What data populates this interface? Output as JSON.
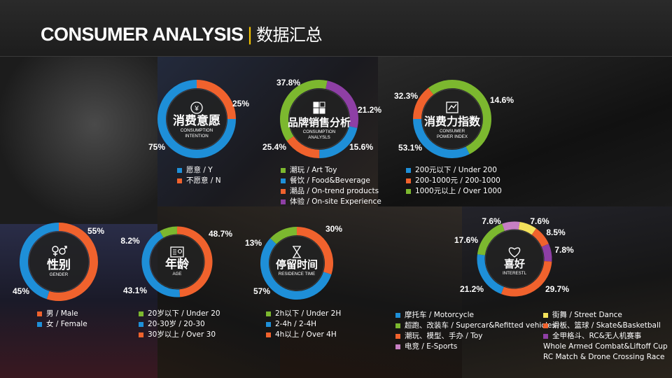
{
  "header": {
    "title_en": "CONSUMER ANALYSIS",
    "separator": "|",
    "title_cn": "数据汇总"
  },
  "colors": {
    "blue": "#1e8fd8",
    "orange": "#f0622d",
    "green": "#7cb82f",
    "purple": "#8e3fa5",
    "yellow": "#f3e25b",
    "pink": "#c77fc3",
    "accent": "#f5c400"
  },
  "charts": [
    {
      "id": "consumption-intention",
      "icon": "yen-icon",
      "title_cn": "消费意愿",
      "title_en": [
        "CONSUMPTION",
        "INTENTION"
      ],
      "labels": [
        "25%",
        "75%"
      ],
      "legend": [
        {
          "color": "#1e8fd8",
          "text": "愿意 / Y"
        },
        {
          "color": "#f0622d",
          "text": "不愿意 / N"
        }
      ]
    },
    {
      "id": "brand-sales",
      "icon": "grid-icon",
      "title_cn": "品牌销售分析",
      "title_en": [
        "CONSUMPTION",
        "ANALYSLS"
      ],
      "labels": [
        "37.8%",
        "21.2%",
        "15.6%",
        "25.4%"
      ],
      "legend": [
        {
          "color": "#7cb82f",
          "text": "潮玩 / Art Toy"
        },
        {
          "color": "#1e8fd8",
          "text": "餐饮 / Food&Beverage"
        },
        {
          "color": "#f0622d",
          "text": "潮品 / On-trend products"
        },
        {
          "color": "#8e3fa5",
          "text": "体验 / On-site Experience"
        }
      ]
    },
    {
      "id": "consumer-power",
      "icon": "wallet-icon",
      "title_cn": "消费力指数",
      "title_en": [
        "CONSUMER",
        "POWER INDEX"
      ],
      "labels": [
        "32.3%",
        "14.6%",
        "53.1%"
      ],
      "legend": [
        {
          "color": "#1e8fd8",
          "text": "200元以下 / Under 200"
        },
        {
          "color": "#f0622d",
          "text": "200-1000元 / 200-1000"
        },
        {
          "color": "#7cb82f",
          "text": "1000元以上 / Over 1000"
        }
      ]
    },
    {
      "id": "gender",
      "icon": "gender-icon",
      "title_cn": "性别",
      "title_en": [
        "GENDER"
      ],
      "labels": [
        "55%",
        "45%"
      ],
      "legend": [
        {
          "color": "#f0622d",
          "text": "男 / Male"
        },
        {
          "color": "#1e8fd8",
          "text": "女 / Female"
        }
      ]
    },
    {
      "id": "age",
      "icon": "id-card-icon",
      "title_cn": "年龄",
      "title_en": [
        "AGE"
      ],
      "labels": [
        "8.2%",
        "48.7%",
        "43.1%"
      ],
      "legend": [
        {
          "color": "#7cb82f",
          "text": "20岁以下 / Under 20"
        },
        {
          "color": "#1e8fd8",
          "text": "20-30岁 / 20-30"
        },
        {
          "color": "#f0622d",
          "text": "30岁以上 / Over 30"
        }
      ]
    },
    {
      "id": "residence-time",
      "icon": "hourglass-icon",
      "title_cn": "停留时间",
      "title_en": [
        "RESIDENCE TIME"
      ],
      "labels": [
        "13%",
        "30%",
        "57%"
      ],
      "legend": [
        {
          "color": "#7cb82f",
          "text": "2h以下 / Under 2H"
        },
        {
          "color": "#1e8fd8",
          "text": "2-4h / 2-4H"
        },
        {
          "color": "#f0622d",
          "text": "4h以上 / Over 4H"
        }
      ]
    },
    {
      "id": "interests",
      "icon": "heart-icon",
      "title_cn": "喜好",
      "title_en": [
        "INTERESTL"
      ],
      "labels": [
        "7.6%",
        "7.6%",
        "8.5%",
        "7.8%",
        "29.7%",
        "21.2%",
        "17.6%"
      ],
      "legend_left": [
        {
          "color": "#1e8fd8",
          "text": "摩托车 / Motorcycle"
        },
        {
          "color": "#7cb82f",
          "text": "超跑、改装车 / Supercar&Refitted vehicles"
        },
        {
          "color": "#f0622d",
          "text": "潮玩、模型、手办 / Toy"
        },
        {
          "color": "#c77fc3",
          "text": "电竞 / E-Sports"
        }
      ],
      "legend_right": [
        {
          "color": "#f3e25b",
          "text": "街舞 / Street Dance"
        },
        {
          "color": "#f0622d",
          "text": "滑板、篮球 / Skate&Basketball"
        },
        {
          "color": "#8e3fa5",
          "text": "全甲格斗、RC&无人机赛事"
        }
      ],
      "legend_right_extra": [
        "Whole Armed Combat&Liftoff Cup",
        "RC Match & Drone Crossing Race"
      ]
    }
  ],
  "chart_data": [
    {
      "type": "pie",
      "title": "消费意愿 CONSUMPTION INTENTION",
      "series": [
        {
          "name": "愿意 / Y",
          "value": 75
        },
        {
          "name": "不愿意 / N",
          "value": 25
        }
      ]
    },
    {
      "type": "pie",
      "title": "品牌销售分析 CONSUMPTION ANALYSLS",
      "series": [
        {
          "name": "潮玩 / Art Toy",
          "value": 37.8
        },
        {
          "name": "餐饮 / Food&Beverage",
          "value": 15.6
        },
        {
          "name": "潮品 / On-trend products",
          "value": 25.4
        },
        {
          "name": "体验 / On-site Experience",
          "value": 21.2
        }
      ]
    },
    {
      "type": "pie",
      "title": "消费力指数 CONSUMER POWER INDEX",
      "series": [
        {
          "name": "200元以下 / Under 200",
          "value": 53.1
        },
        {
          "name": "200-1000元 / 200-1000",
          "value": 32.3
        },
        {
          "name": "1000元以上 / Over 1000",
          "value": 14.6
        }
      ]
    },
    {
      "type": "pie",
      "title": "性别 GENDER",
      "series": [
        {
          "name": "男 / Male",
          "value": 55
        },
        {
          "name": "女 / Female",
          "value": 45
        }
      ]
    },
    {
      "type": "pie",
      "title": "年龄 AGE",
      "series": [
        {
          "name": "20岁以下 / Under 20",
          "value": 8.2
        },
        {
          "name": "20-30岁 / 20-30",
          "value": 43.1
        },
        {
          "name": "30岁以上 / Over 30",
          "value": 48.7
        }
      ]
    },
    {
      "type": "pie",
      "title": "停留时间 RESIDENCE TIME",
      "series": [
        {
          "name": "2h以下 / Under 2H",
          "value": 13
        },
        {
          "name": "2-4h / 2-4H",
          "value": 57
        },
        {
          "name": "4h以上 / Over 4H",
          "value": 30
        }
      ]
    },
    {
      "type": "pie",
      "title": "喜好 INTERESTL",
      "series": [
        {
          "name": "摩托车 / Motorcycle",
          "value": 21.2
        },
        {
          "name": "超跑、改装车 / Supercar&Refitted vehicles",
          "value": 17.6
        },
        {
          "name": "潮玩、模型、手办 / Toy",
          "value": 29.7
        },
        {
          "name": "电竞 / E-Sports",
          "value": 7.6
        },
        {
          "name": "街舞 / Street Dance",
          "value": 7.6
        },
        {
          "name": "滑板、篮球 / Skate&Basketball",
          "value": 8.5
        },
        {
          "name": "全甲格斗、RC&无人机赛事",
          "value": 7.8
        }
      ]
    }
  ]
}
